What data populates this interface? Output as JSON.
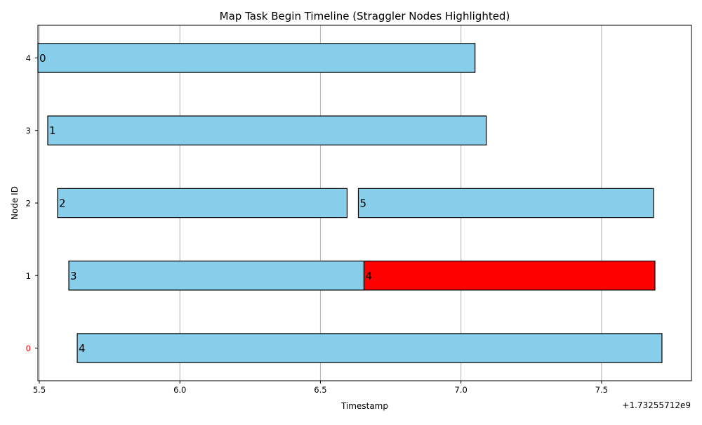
{
  "chart_data": {
    "type": "bar",
    "orientation": "horizontal",
    "title": "Map Task Begin Timeline (Straggler Nodes Highlighted)",
    "xlabel": "Timestamp",
    "ylabel": "Node ID",
    "x_offset_label": "+1.73255712e9",
    "xlim": [
      5.495,
      7.82
    ],
    "ylim": [
      -0.45,
      4.45
    ],
    "x_ticks": [
      5.5,
      6.0,
      6.5,
      7.0,
      7.5
    ],
    "x_tick_labels": [
      "5.5",
      "6.0",
      "6.5",
      "7.0",
      "7.5"
    ],
    "y_ticks": [
      0,
      1,
      2,
      3,
      4
    ],
    "y_tick_labels": [
      "0",
      "1",
      "2",
      "3",
      "4"
    ],
    "straggler_nodes": [
      0
    ],
    "grid": "x",
    "colors": {
      "normal": "#87ceeb",
      "straggler": "#ff0000",
      "straggler_tick": "#ff0000",
      "grid": "#b0b0b0"
    },
    "tasks": [
      {
        "label": "0",
        "node": 4,
        "start": 5.495,
        "end": 7.05,
        "straggler": false
      },
      {
        "label": "1",
        "node": 3,
        "start": 5.53,
        "end": 7.09,
        "straggler": false
      },
      {
        "label": "2",
        "node": 2,
        "start": 5.565,
        "end": 6.595,
        "straggler": false
      },
      {
        "label": "5",
        "node": 2,
        "start": 6.635,
        "end": 7.685,
        "straggler": false
      },
      {
        "label": "3",
        "node": 1,
        "start": 5.605,
        "end": 6.655,
        "straggler": false
      },
      {
        "label": "4",
        "node": 1,
        "start": 6.655,
        "end": 7.69,
        "straggler": true
      },
      {
        "label": "4",
        "node": 0,
        "start": 5.635,
        "end": 7.715,
        "straggler": false
      }
    ]
  }
}
